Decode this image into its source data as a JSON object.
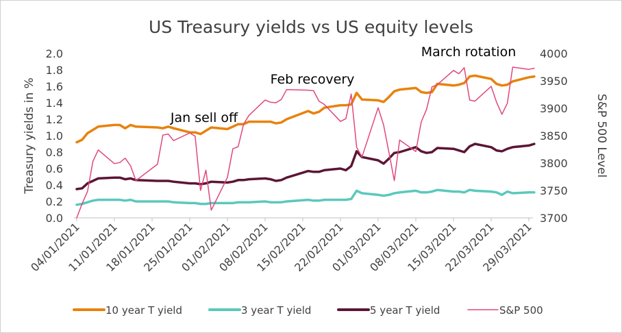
{
  "chart_data": {
    "type": "line",
    "title": "US Treasury yields vs US equity levels",
    "ylabel": "Treasury yields in %",
    "y2label": "S&P 500 Level",
    "ylim": [
      0,
      2.0
    ],
    "y2lim": [
      3700,
      4000
    ],
    "yticks": [
      "0.0",
      "0.2",
      "0.4",
      "0.6",
      "0.8",
      "1.0",
      "1.2",
      "1.4",
      "1.6",
      "1.8",
      "2.0"
    ],
    "y2ticks": [
      "3700",
      "3750",
      "3800",
      "3850",
      "3900",
      "3950",
      "4000"
    ],
    "xticks": [
      "04/01/2021",
      "11/01/2021",
      "18/01/2021",
      "25/01/2021",
      "01/02/2021",
      "08/02/2021",
      "15/02/2021",
      "22/02/2021",
      "01/03/2021",
      "08/03/2021",
      "15/03/2021",
      "22/03/2021",
      "29/03/2021"
    ],
    "grid": false,
    "legend_position": "bottom",
    "annotations": [
      {
        "text": "Jan sell off",
        "near": "late-January"
      },
      {
        "text": "Feb recovery",
        "near": "mid-February"
      },
      {
        "text": "March rotation",
        "near": "mid-March"
      }
    ],
    "series": [
      {
        "name": "10 year T yield",
        "axis": "left",
        "color": "#E8820C",
        "points": [
          [
            "04/01/2021",
            0.92
          ],
          [
            "05/01/2021",
            0.95
          ],
          [
            "06/01/2021",
            1.03
          ],
          [
            "07/01/2021",
            1.07
          ],
          [
            "08/01/2021",
            1.11
          ],
          [
            "11/01/2021",
            1.13
          ],
          [
            "12/01/2021",
            1.13
          ],
          [
            "13/01/2021",
            1.09
          ],
          [
            "14/01/2021",
            1.13
          ],
          [
            "15/01/2021",
            1.11
          ],
          [
            "19/01/2021",
            1.1
          ],
          [
            "20/01/2021",
            1.09
          ],
          [
            "21/01/2021",
            1.11
          ],
          [
            "22/01/2021",
            1.09
          ],
          [
            "25/01/2021",
            1.04
          ],
          [
            "26/01/2021",
            1.04
          ],
          [
            "27/01/2021",
            1.02
          ],
          [
            "28/01/2021",
            1.06
          ],
          [
            "29/01/2021",
            1.1
          ],
          [
            "01/02/2021",
            1.08
          ],
          [
            "02/02/2021",
            1.11
          ],
          [
            "03/02/2021",
            1.14
          ],
          [
            "04/02/2021",
            1.14
          ],
          [
            "05/02/2021",
            1.17
          ],
          [
            "08/02/2021",
            1.17
          ],
          [
            "09/02/2021",
            1.17
          ],
          [
            "10/02/2021",
            1.15
          ],
          [
            "11/02/2021",
            1.16
          ],
          [
            "12/02/2021",
            1.2
          ],
          [
            "16/02/2021",
            1.3
          ],
          [
            "17/02/2021",
            1.27
          ],
          [
            "18/02/2021",
            1.29
          ],
          [
            "19/02/2021",
            1.34
          ],
          [
            "22/02/2021",
            1.37
          ],
          [
            "23/02/2021",
            1.37
          ],
          [
            "24/02/2021",
            1.38
          ],
          [
            "25/02/2021",
            1.52
          ],
          [
            "26/02/2021",
            1.44
          ],
          [
            "01/03/2021",
            1.43
          ],
          [
            "02/03/2021",
            1.41
          ],
          [
            "03/03/2021",
            1.47
          ],
          [
            "04/03/2021",
            1.54
          ],
          [
            "05/03/2021",
            1.56
          ],
          [
            "08/03/2021",
            1.58
          ],
          [
            "09/03/2021",
            1.53
          ],
          [
            "10/03/2021",
            1.52
          ],
          [
            "11/03/2021",
            1.53
          ],
          [
            "12/03/2021",
            1.63
          ],
          [
            "15/03/2021",
            1.61
          ],
          [
            "16/03/2021",
            1.62
          ],
          [
            "17/03/2021",
            1.64
          ],
          [
            "18/03/2021",
            1.72
          ],
          [
            "19/03/2021",
            1.73
          ],
          [
            "22/03/2021",
            1.69
          ],
          [
            "23/03/2021",
            1.63
          ],
          [
            "24/03/2021",
            1.61
          ],
          [
            "25/03/2021",
            1.62
          ],
          [
            "26/03/2021",
            1.66
          ],
          [
            "29/03/2021",
            1.71
          ],
          [
            "30/03/2021",
            1.72
          ]
        ]
      },
      {
        "name": "3 year T yield",
        "axis": "left",
        "color": "#5BC8BC",
        "points": [
          [
            "04/01/2021",
            0.16
          ],
          [
            "05/01/2021",
            0.17
          ],
          [
            "06/01/2021",
            0.19
          ],
          [
            "07/01/2021",
            0.21
          ],
          [
            "08/01/2021",
            0.22
          ],
          [
            "11/01/2021",
            0.22
          ],
          [
            "12/01/2021",
            0.22
          ],
          [
            "13/01/2021",
            0.21
          ],
          [
            "14/01/2021",
            0.22
          ],
          [
            "15/01/2021",
            0.2
          ],
          [
            "19/01/2021",
            0.2
          ],
          [
            "20/01/2021",
            0.2
          ],
          [
            "21/01/2021",
            0.2
          ],
          [
            "22/01/2021",
            0.19
          ],
          [
            "25/01/2021",
            0.18
          ],
          [
            "26/01/2021",
            0.18
          ],
          [
            "27/01/2021",
            0.17
          ],
          [
            "28/01/2021",
            0.17
          ],
          [
            "29/01/2021",
            0.18
          ],
          [
            "01/02/2021",
            0.18
          ],
          [
            "02/02/2021",
            0.18
          ],
          [
            "03/02/2021",
            0.19
          ],
          [
            "04/02/2021",
            0.19
          ],
          [
            "05/02/2021",
            0.19
          ],
          [
            "08/02/2021",
            0.2
          ],
          [
            "09/02/2021",
            0.19
          ],
          [
            "10/02/2021",
            0.19
          ],
          [
            "11/02/2021",
            0.19
          ],
          [
            "12/02/2021",
            0.2
          ],
          [
            "16/02/2021",
            0.22
          ],
          [
            "17/02/2021",
            0.21
          ],
          [
            "18/02/2021",
            0.21
          ],
          [
            "19/02/2021",
            0.22
          ],
          [
            "22/02/2021",
            0.22
          ],
          [
            "23/02/2021",
            0.22
          ],
          [
            "24/02/2021",
            0.23
          ],
          [
            "25/02/2021",
            0.33
          ],
          [
            "26/02/2021",
            0.3
          ],
          [
            "01/03/2021",
            0.28
          ],
          [
            "02/03/2021",
            0.27
          ],
          [
            "03/03/2021",
            0.28
          ],
          [
            "04/03/2021",
            0.3
          ],
          [
            "05/03/2021",
            0.31
          ],
          [
            "08/03/2021",
            0.33
          ],
          [
            "09/03/2021",
            0.31
          ],
          [
            "10/03/2021",
            0.31
          ],
          [
            "11/03/2021",
            0.32
          ],
          [
            "12/03/2021",
            0.34
          ],
          [
            "15/03/2021",
            0.32
          ],
          [
            "16/03/2021",
            0.32
          ],
          [
            "17/03/2021",
            0.31
          ],
          [
            "18/03/2021",
            0.34
          ],
          [
            "19/03/2021",
            0.33
          ],
          [
            "22/03/2021",
            0.32
          ],
          [
            "23/03/2021",
            0.31
          ],
          [
            "24/03/2021",
            0.28
          ],
          [
            "25/03/2021",
            0.32
          ],
          [
            "26/03/2021",
            0.3
          ],
          [
            "29/03/2021",
            0.31
          ],
          [
            "30/03/2021",
            0.31
          ]
        ]
      },
      {
        "name": "5 year T yield",
        "axis": "left",
        "color": "#5B1535",
        "points": [
          [
            "04/01/2021",
            0.35
          ],
          [
            "05/01/2021",
            0.36
          ],
          [
            "06/01/2021",
            0.42
          ],
          [
            "07/01/2021",
            0.45
          ],
          [
            "08/01/2021",
            0.48
          ],
          [
            "11/01/2021",
            0.49
          ],
          [
            "12/01/2021",
            0.49
          ],
          [
            "13/01/2021",
            0.47
          ],
          [
            "14/01/2021",
            0.48
          ],
          [
            "15/01/2021",
            0.46
          ],
          [
            "19/01/2021",
            0.45
          ],
          [
            "20/01/2021",
            0.45
          ],
          [
            "21/01/2021",
            0.45
          ],
          [
            "22/01/2021",
            0.44
          ],
          [
            "25/01/2021",
            0.42
          ],
          [
            "26/01/2021",
            0.42
          ],
          [
            "27/01/2021",
            0.41
          ],
          [
            "28/01/2021",
            0.42
          ],
          [
            "29/01/2021",
            0.44
          ],
          [
            "01/02/2021",
            0.43
          ],
          [
            "02/02/2021",
            0.44
          ],
          [
            "03/02/2021",
            0.46
          ],
          [
            "04/02/2021",
            0.46
          ],
          [
            "05/02/2021",
            0.47
          ],
          [
            "08/02/2021",
            0.48
          ],
          [
            "09/02/2021",
            0.47
          ],
          [
            "10/02/2021",
            0.45
          ],
          [
            "11/02/2021",
            0.46
          ],
          [
            "12/02/2021",
            0.49
          ],
          [
            "16/02/2021",
            0.57
          ],
          [
            "17/02/2021",
            0.56
          ],
          [
            "18/02/2021",
            0.56
          ],
          [
            "19/02/2021",
            0.58
          ],
          [
            "22/02/2021",
            0.6
          ],
          [
            "23/02/2021",
            0.58
          ],
          [
            "24/02/2021",
            0.63
          ],
          [
            "25/02/2021",
            0.81
          ],
          [
            "26/02/2021",
            0.74
          ],
          [
            "01/03/2021",
            0.7
          ],
          [
            "02/03/2021",
            0.66
          ],
          [
            "03/03/2021",
            0.72
          ],
          [
            "04/03/2021",
            0.79
          ],
          [
            "05/03/2021",
            0.8
          ],
          [
            "08/03/2021",
            0.86
          ],
          [
            "09/03/2021",
            0.81
          ],
          [
            "10/03/2021",
            0.79
          ],
          [
            "11/03/2021",
            0.8
          ],
          [
            "12/03/2021",
            0.85
          ],
          [
            "15/03/2021",
            0.84
          ],
          [
            "16/03/2021",
            0.82
          ],
          [
            "17/03/2021",
            0.8
          ],
          [
            "18/03/2021",
            0.87
          ],
          [
            "19/03/2021",
            0.9
          ],
          [
            "22/03/2021",
            0.86
          ],
          [
            "23/03/2021",
            0.82
          ],
          [
            "24/03/2021",
            0.81
          ],
          [
            "25/03/2021",
            0.84
          ],
          [
            "26/03/2021",
            0.86
          ],
          [
            "29/03/2021",
            0.88
          ],
          [
            "30/03/2021",
            0.9
          ]
        ]
      },
      {
        "name": "S&P 500",
        "axis": "right",
        "color": "#E0467C",
        "points": [
          [
            "04/01/2021",
            3700
          ],
          [
            "05/01/2021",
            3726
          ],
          [
            "06/01/2021",
            3748
          ],
          [
            "07/01/2021",
            3803
          ],
          [
            "08/01/2021",
            3824
          ],
          [
            "11/01/2021",
            3799
          ],
          [
            "12/01/2021",
            3801
          ],
          [
            "13/01/2021",
            3809
          ],
          [
            "14/01/2021",
            3795
          ],
          [
            "15/01/2021",
            3768
          ],
          [
            "19/01/2021",
            3798
          ],
          [
            "20/01/2021",
            3851
          ],
          [
            "21/01/2021",
            3853
          ],
          [
            "22/01/2021",
            3841
          ],
          [
            "25/01/2021",
            3855
          ],
          [
            "26/01/2021",
            3849
          ],
          [
            "27/01/2021",
            3750
          ],
          [
            "28/01/2021",
            3787
          ],
          [
            "29/01/2021",
            3714
          ],
          [
            "01/02/2021",
            3774
          ],
          [
            "02/02/2021",
            3826
          ],
          [
            "03/02/2021",
            3830
          ],
          [
            "04/02/2021",
            3871
          ],
          [
            "05/02/2021",
            3887
          ],
          [
            "08/02/2021",
            3915
          ],
          [
            "09/02/2021",
            3911
          ],
          [
            "10/02/2021",
            3910
          ],
          [
            "11/02/2021",
            3916
          ],
          [
            "12/02/2021",
            3934
          ],
          [
            "16/02/2021",
            3933
          ],
          [
            "17/02/2021",
            3932
          ],
          [
            "18/02/2021",
            3913
          ],
          [
            "19/02/2021",
            3907
          ],
          [
            "22/02/2021",
            3876
          ],
          [
            "23/02/2021",
            3881
          ],
          [
            "24/02/2021",
            3926
          ],
          [
            "25/02/2021",
            3829
          ],
          [
            "26/02/2021",
            3811
          ],
          [
            "01/03/2021",
            3901
          ],
          [
            "02/03/2021",
            3870
          ],
          [
            "03/03/2021",
            3820
          ],
          [
            "04/03/2021",
            3768
          ],
          [
            "05/03/2021",
            3842
          ],
          [
            "08/03/2021",
            3821
          ],
          [
            "09/03/2021",
            3875
          ],
          [
            "10/03/2021",
            3898
          ],
          [
            "11/03/2021",
            3939
          ],
          [
            "12/03/2021",
            3943
          ],
          [
            "15/03/2021",
            3969
          ],
          [
            "16/03/2021",
            3963
          ],
          [
            "17/03/2021",
            3974
          ],
          [
            "18/03/2021",
            3915
          ],
          [
            "19/03/2021",
            3913
          ],
          [
            "22/03/2021",
            3940
          ],
          [
            "23/03/2021",
            3911
          ],
          [
            "24/03/2021",
            3889
          ],
          [
            "25/03/2021",
            3909
          ],
          [
            "26/03/2021",
            3975
          ],
          [
            "29/03/2021",
            3971
          ],
          [
            "30/03/2021",
            3973
          ]
        ]
      }
    ]
  }
}
